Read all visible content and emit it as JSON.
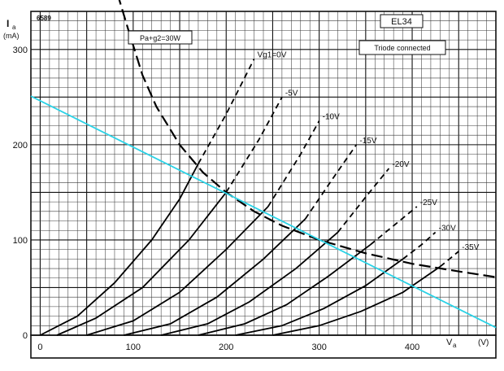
{
  "chart_data": {
    "type": "line",
    "code": "6589",
    "tube": "EL34",
    "subtitle": "Triode connected",
    "ylabel": "I",
    "ylabel_sub": "a",
    "yunit": "(mA)",
    "xlabel": "V",
    "xlabel_sub": "a",
    "xunit": "(V)",
    "xlim": [
      -10,
      490
    ],
    "ylim": [
      0,
      340
    ],
    "xticks": [
      "0",
      "100",
      "200",
      "300",
      "400"
    ],
    "xtick_values": [
      0,
      100,
      200,
      300,
      400
    ],
    "yticks": [
      "0",
      "100",
      "200",
      "300"
    ],
    "ytick_values": [
      0,
      100,
      200,
      300
    ],
    "grid": true,
    "power_label": "Pa+g2=30W",
    "series": [
      {
        "name": "Vg1=0V",
        "solid": [
          [
            0,
            0
          ],
          [
            40,
            20
          ],
          [
            80,
            55
          ],
          [
            120,
            100
          ],
          [
            150,
            143
          ],
          [
            170,
            180
          ]
        ],
        "dashed": [
          [
            170,
            180
          ],
          [
            200,
            232
          ],
          [
            230,
            290
          ]
        ]
      },
      {
        "name": "-5V",
        "solid": [
          [
            18,
            0
          ],
          [
            60,
            18
          ],
          [
            110,
            50
          ],
          [
            160,
            100
          ],
          [
            200,
            150
          ]
        ],
        "dashed": [
          [
            200,
            150
          ],
          [
            235,
            205
          ],
          [
            260,
            250
          ]
        ]
      },
      {
        "name": "-10V",
        "solid": [
          [
            50,
            0
          ],
          [
            100,
            15
          ],
          [
            150,
            45
          ],
          [
            200,
            90
          ],
          [
            245,
            135
          ]
        ],
        "dashed": [
          [
            245,
            135
          ],
          [
            280,
            190
          ],
          [
            300,
            225
          ]
        ]
      },
      {
        "name": "-15V",
        "solid": [
          [
            90,
            0
          ],
          [
            140,
            12
          ],
          [
            190,
            40
          ],
          [
            240,
            80
          ],
          [
            285,
            122
          ]
        ],
        "dashed": [
          [
            285,
            122
          ],
          [
            315,
            165
          ],
          [
            340,
            200
          ]
        ]
      },
      {
        "name": "-20V",
        "solid": [
          [
            130,
            0
          ],
          [
            180,
            12
          ],
          [
            225,
            35
          ],
          [
            275,
            70
          ],
          [
            320,
            108
          ]
        ],
        "dashed": [
          [
            320,
            108
          ],
          [
            350,
            145
          ],
          [
            375,
            175
          ]
        ]
      },
      {
        "name": "-25V",
        "solid": [
          [
            170,
            0
          ],
          [
            220,
            12
          ],
          [
            265,
            32
          ],
          [
            310,
            62
          ],
          [
            355,
            95
          ]
        ],
        "dashed": [
          [
            355,
            95
          ],
          [
            380,
            115
          ],
          [
            405,
            135
          ]
        ]
      },
      {
        "name": "-30V",
        "solid": [
          [
            210,
            0
          ],
          [
            260,
            10
          ],
          [
            305,
            28
          ],
          [
            350,
            52
          ],
          [
            390,
            80
          ]
        ],
        "dashed": [
          [
            390,
            80
          ],
          [
            410,
            95
          ],
          [
            425,
            108
          ]
        ]
      },
      {
        "name": "-35V",
        "solid": [
          [
            250,
            0
          ],
          [
            300,
            10
          ],
          [
            345,
            25
          ],
          [
            390,
            45
          ],
          [
            430,
            72
          ]
        ],
        "dashed": [
          [
            430,
            72
          ],
          [
            440,
            80
          ],
          [
            450,
            88
          ]
        ]
      }
    ],
    "power_curve": [
      [
        78,
        375
      ],
      [
        95,
        320
      ],
      [
        110,
        273
      ],
      [
        125,
        240
      ],
      [
        150,
        200
      ],
      [
        175,
        171
      ],
      [
        200,
        150
      ],
      [
        230,
        130
      ],
      [
        260,
        115
      ],
      [
        300,
        100
      ],
      [
        350,
        86
      ],
      [
        400,
        75
      ],
      [
        450,
        67
      ],
      [
        490,
        61
      ]
    ],
    "load_line": [
      [
        -10,
        251
      ],
      [
        490,
        8
      ]
    ],
    "colors": {
      "load_line": "#2ad2e6",
      "grid": "#3a3a3a",
      "ink": "#000000"
    }
  }
}
